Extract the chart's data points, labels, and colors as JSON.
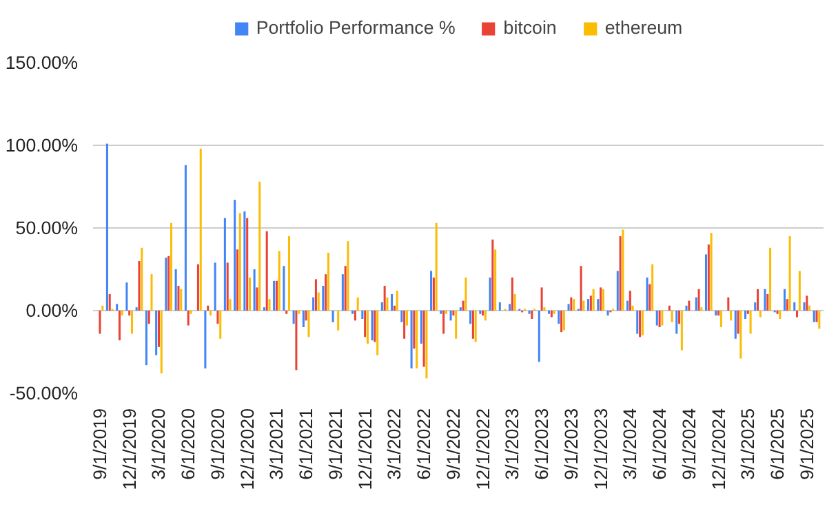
{
  "chart_data": {
    "type": "bar",
    "categories": [
      "9/1/2019",
      null,
      null,
      "12/1/2019",
      null,
      null,
      "3/1/2020",
      null,
      null,
      "6/1/2020",
      null,
      null,
      "9/1/2020",
      null,
      null,
      "12/1/2020",
      null,
      null,
      "3/1/2021",
      null,
      null,
      "6/1/2021",
      null,
      null,
      "9/1/2021",
      null,
      null,
      "12/1/2021",
      null,
      null,
      "3/1/2022",
      null,
      null,
      "6/1/2022",
      null,
      null,
      "9/1/2022",
      null,
      null,
      "12/1/2022",
      null,
      null,
      "3/1/2023",
      null,
      null,
      "6/1/2023",
      null,
      null,
      "9/1/2023",
      null,
      null,
      "12/1/2023",
      null,
      null,
      "3/1/2024",
      null,
      null,
      "6/1/2024",
      null,
      null,
      "9/1/2024",
      null,
      null,
      "12/1/2024",
      null,
      null,
      "3/1/2025",
      null,
      null,
      "6/1/2025",
      null,
      null,
      "9/1/2025",
      null
    ],
    "series": [
      {
        "name": "Portfolio Performance %",
        "color": "#4285f4",
        "values": [
          0,
          101,
          4,
          17,
          2,
          -33,
          -27,
          32,
          25,
          88,
          0,
          -35,
          29,
          56,
          67,
          60,
          25,
          2,
          18,
          27,
          -8,
          -10,
          8,
          15,
          -7,
          22,
          -2,
          -5,
          -18,
          5,
          10,
          -7,
          -35,
          -20,
          24,
          -2,
          -6,
          2,
          -8,
          -2,
          20,
          5,
          4,
          1,
          -2,
          -31,
          -2,
          -8,
          4,
          1,
          7,
          7,
          -3,
          24,
          6,
          -14,
          20,
          -9,
          0,
          -14,
          3,
          8,
          34,
          -3,
          0,
          -17,
          -5,
          5,
          13,
          -1,
          13,
          5,
          5,
          -7
        ]
      },
      {
        "name": "bitcoin",
        "color": "#ea4335",
        "values": [
          -14,
          10,
          -18,
          -3,
          30,
          -8,
          -22,
          33,
          15,
          -9,
          28,
          3,
          -8,
          29,
          37,
          56,
          14,
          48,
          18,
          -2,
          -36,
          -6,
          19,
          22,
          0,
          27,
          -6,
          -16,
          -19,
          15,
          3,
          -17,
          -23,
          -34,
          20,
          -14,
          -3,
          6,
          -17,
          -3,
          43,
          0,
          20,
          -1,
          -5,
          14,
          -4,
          -13,
          8,
          27,
          9,
          14,
          -1,
          45,
          12,
          -16,
          16,
          -10,
          3,
          -8,
          6,
          13,
          40,
          -3,
          8,
          -14,
          -2,
          13,
          10,
          -2,
          7,
          -4,
          9,
          -7
        ]
      },
      {
        "name": "ethereum",
        "color": "#fbbc04",
        "values": [
          3,
          1,
          -3,
          -14,
          38,
          22,
          -38,
          53,
          13,
          -2,
          98,
          -3,
          -17,
          7,
          59,
          20,
          78,
          7,
          36,
          45,
          -2,
          -16,
          11,
          35,
          -12,
          42,
          8,
          -20,
          -27,
          8,
          12,
          -9,
          -35,
          -41,
          53,
          -2,
          -17,
          20,
          -19,
          -6,
          37,
          1,
          10,
          1,
          1,
          2,
          -2,
          -12,
          7,
          6,
          13,
          13,
          1,
          49,
          3,
          -15,
          28,
          -9,
          -7,
          -24,
          0,
          2,
          47,
          -10,
          -6,
          -29,
          -14,
          -4,
          38,
          -5,
          45,
          24,
          3,
          -11
        ]
      }
    ],
    "ylim": [
      -50,
      150
    ],
    "yticks": [
      {
        "value": -50,
        "label": "-50.00%"
      },
      {
        "value": 0,
        "label": "0.00%"
      },
      {
        "value": 50,
        "label": "50.00%"
      },
      {
        "value": 100,
        "label": "100.00%"
      },
      {
        "value": 150,
        "label": "150.00%"
      }
    ],
    "grid": "y",
    "legend": "top"
  }
}
